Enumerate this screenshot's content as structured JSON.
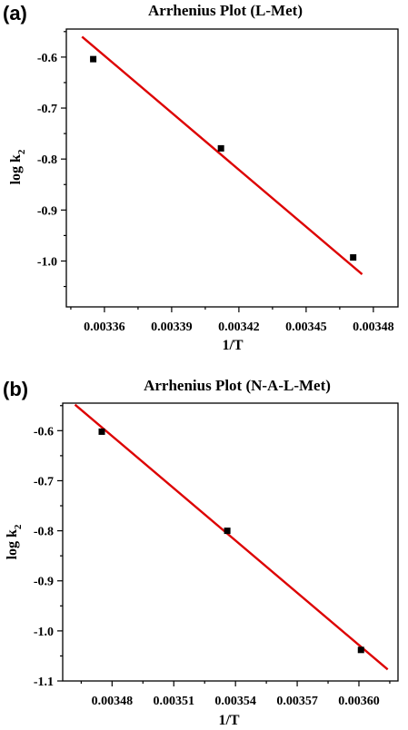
{
  "chart_data": [
    {
      "panel": "(a)",
      "type": "scatter",
      "title": "Arrhenius Plot (L-Met)",
      "xlabel": "1/T",
      "ylabel": "log k",
      "ylabel_sub": "2",
      "xlim": [
        0.003343,
        0.003491
      ],
      "ylim": [
        -1.09,
        -0.545
      ],
      "xticks": [
        0.00336,
        0.00339,
        0.00342,
        0.00345,
        0.00348
      ],
      "xtick_labels": [
        "0.00336",
        "0.00339",
        "0.00342",
        "0.00345",
        "0.00348"
      ],
      "yticks": [
        -1.0,
        -0.9,
        -0.8,
        -0.7,
        -0.6
      ],
      "ytick_labels": [
        "-1.0",
        "-0.9",
        "-0.8",
        "-0.7",
        "-0.6"
      ],
      "points": [
        {
          "x": 0.003355,
          "y": -0.604
        },
        {
          "x": 0.003412,
          "y": -0.779
        },
        {
          "x": 0.003471,
          "y": -0.993
        }
      ],
      "fit_line": {
        "x": [
          0.00335,
          0.003475
        ],
        "y": [
          -0.56,
          -1.026
        ]
      },
      "marker_color": "#000000",
      "line_color": "#dd0000",
      "grid": false
    },
    {
      "panel": "(b)",
      "type": "scatter",
      "title": "Arrhenius Plot  (N-A-L-Met)",
      "xlabel": "1/T",
      "ylabel": "log k",
      "ylabel_sub": "2",
      "xlim": [
        0.003456,
        0.003619
      ],
      "ylim": [
        -1.1,
        -0.545
      ],
      "xticks": [
        0.00348,
        0.00351,
        0.00354,
        0.00357,
        0.0036
      ],
      "xtick_labels": [
        "0.00348",
        "0.00351",
        "0.00354",
        "0.00357",
        "0.00360"
      ],
      "yticks": [
        -1.1,
        -1.0,
        -0.9,
        -0.8,
        -0.7,
        -0.6
      ],
      "ytick_labels": [
        "-1.1",
        "-1.0",
        "-0.9",
        "-0.8",
        "-0.7",
        "-0.6"
      ],
      "points": [
        {
          "x": 0.003475,
          "y": -0.602
        },
        {
          "x": 0.003536,
          "y": -0.8
        },
        {
          "x": 0.003601,
          "y": -1.038
        }
      ],
      "fit_line": {
        "x": [
          0.003462,
          0.003614
        ],
        "y": [
          -0.548,
          -1.077
        ]
      },
      "marker_color": "#000000",
      "line_color": "#dd0000",
      "grid": false
    }
  ]
}
